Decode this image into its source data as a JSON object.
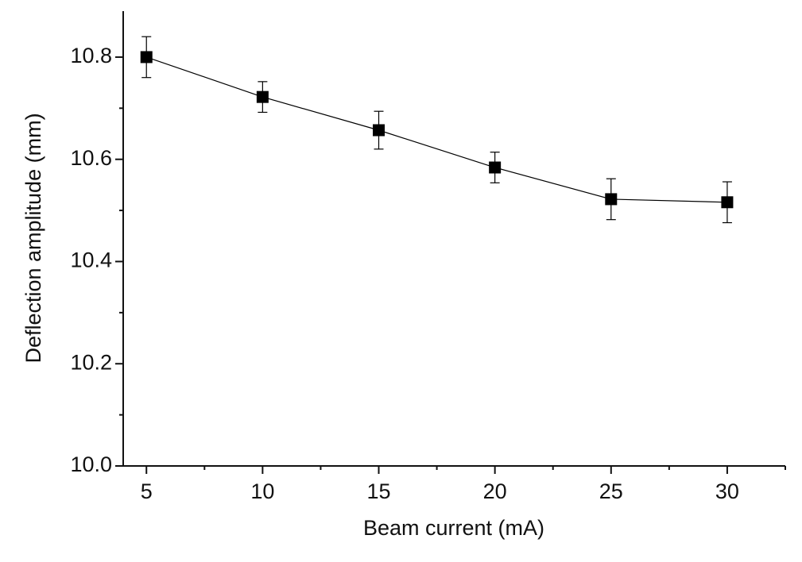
{
  "chart_data": {
    "type": "line",
    "x_label": "Beam current (mA)",
    "y_label": "Deflection amplitude (mm)",
    "x": [
      5,
      10,
      15,
      20,
      25,
      30
    ],
    "values": [
      10.8,
      10.722,
      10.657,
      10.584,
      10.522,
      10.516
    ],
    "errors": [
      0.04,
      0.03,
      0.037,
      0.03,
      0.04,
      0.04
    ],
    "color": "#000000",
    "xlim": [
      4,
      32.5
    ],
    "ylim": [
      10.0,
      10.89
    ],
    "xticks": [
      5,
      10,
      15,
      20,
      25,
      30
    ],
    "x_minor_ticks": [
      7.5,
      12.5,
      17.5,
      22.5,
      27.5,
      32.5
    ],
    "yticks": [
      {
        "value": 10,
        "label": "10.0"
      },
      10.2,
      10.4,
      10.6,
      10.8
    ],
    "y_minor_ticks": [
      10.1,
      10.3,
      10.5,
      10.7
    ],
    "grid": false
  }
}
